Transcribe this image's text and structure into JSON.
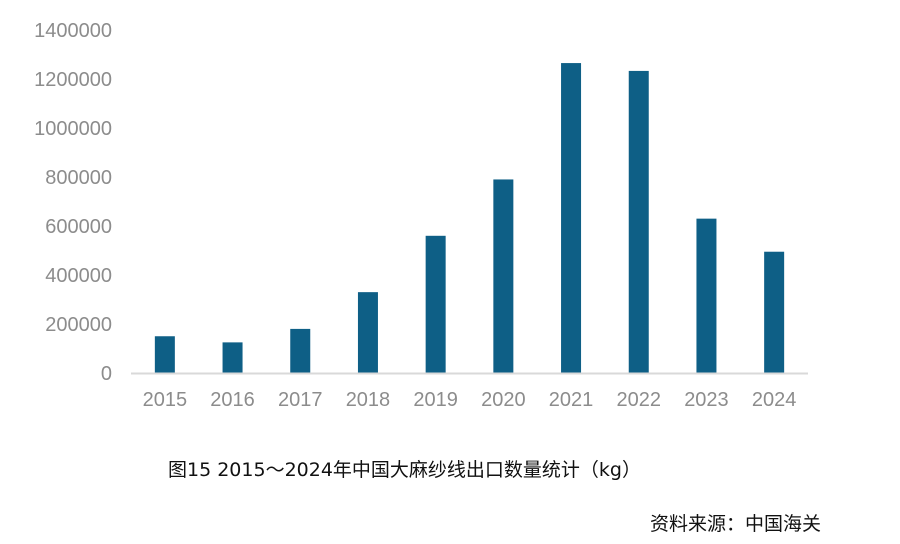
{
  "chart_data": {
    "type": "bar",
    "categories": [
      "2015",
      "2016",
      "2017",
      "2018",
      "2019",
      "2020",
      "2021",
      "2022",
      "2023",
      "2024"
    ],
    "values": [
      150000,
      125000,
      180000,
      330000,
      560000,
      790000,
      1265000,
      1233000,
      630000,
      495000
    ],
    "ylim": [
      0,
      1400000
    ],
    "yticks": [
      "0",
      "200000",
      "400000",
      "600000",
      "800000",
      "1000000",
      "1200000",
      "1400000"
    ],
    "ytick_values": [
      0,
      200000,
      400000,
      600000,
      800000,
      1000000,
      1200000,
      1400000
    ],
    "grid": false,
    "bar_color": "#0e5f86",
    "axis_color": "#d9d9d9",
    "tick_color": "#8c8c8c"
  },
  "caption": "图15  2015～2024年中国大麻纱线出口数量统计（kg）",
  "source": "资料来源：中国海关"
}
